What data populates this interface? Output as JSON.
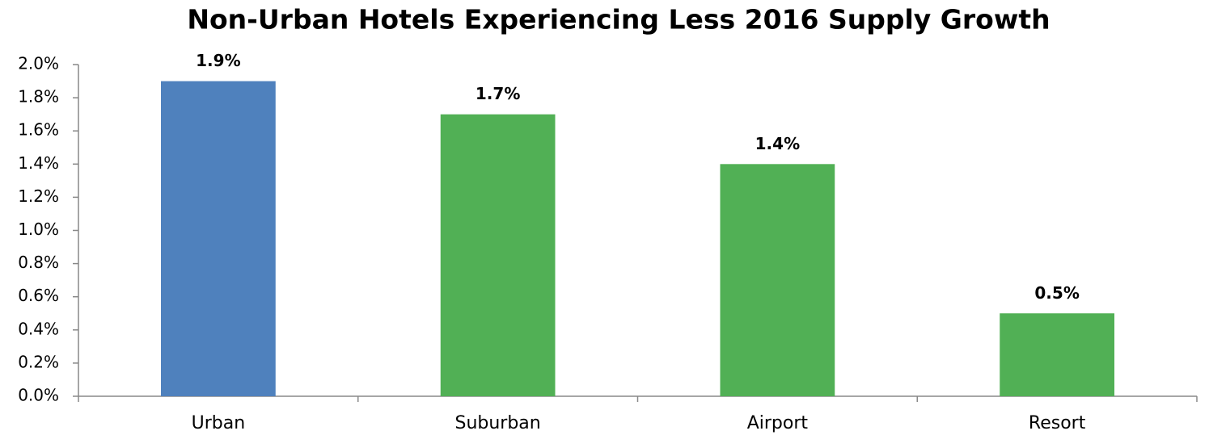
{
  "chart_data": {
    "type": "bar",
    "title": "Non-Urban Hotels Experiencing Less 2016 Supply Growth",
    "categories": [
      "Urban",
      "Suburban",
      "Airport",
      "Resort"
    ],
    "values": [
      1.9,
      1.7,
      1.4,
      0.5
    ],
    "value_labels": [
      "1.9%",
      "1.7%",
      "1.4%",
      "0.5%"
    ],
    "colors": [
      "#4f81bd",
      "#51b055",
      "#51b055",
      "#51b055"
    ],
    "ylim": [
      0,
      2.0
    ],
    "yticks": [
      {
        "value": 0,
        "label": "0.0%"
      },
      {
        "value": 0.2,
        "label": "0.2%"
      },
      {
        "value": 0.4,
        "label": "0.4%"
      },
      {
        "value": 0.6,
        "label": "0.6%"
      },
      {
        "value": 0.8,
        "label": "0.8%"
      },
      {
        "value": 1.0,
        "label": "1.0%"
      },
      {
        "value": 1.2,
        "label": "1.2%"
      },
      {
        "value": 1.4,
        "label": "1.4%"
      },
      {
        "value": 1.6,
        "label": "1.6%"
      },
      {
        "value": 1.8,
        "label": "1.8%"
      },
      {
        "value": 2.0,
        "label": "2.0%"
      }
    ],
    "grid": false
  }
}
